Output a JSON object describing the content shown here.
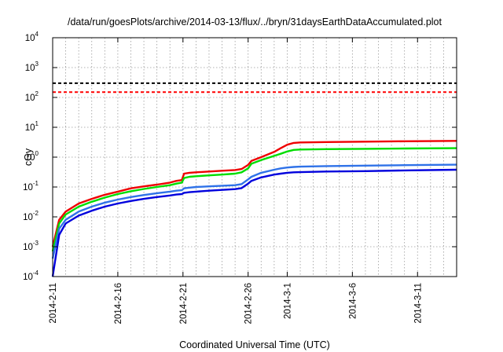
{
  "chart_data": {
    "type": "line",
    "title": "/data/run/goesPlots/archive/2014-03-13/flux/../bryn/31daysEarthDataAccumulated.plot",
    "xlabel": "Coordinated Universal Time (UTC)",
    "ylabel": "cGy",
    "y_scale": "log",
    "ylim_exponents": [
      -4,
      4
    ],
    "y_tick_labels": [
      {
        "base": "10",
        "exp": "-4",
        "value": 0.0001
      },
      {
        "base": "10",
        "exp": "-3",
        "value": 0.001
      },
      {
        "base": "10",
        "exp": "-2",
        "value": 0.01
      },
      {
        "base": "10",
        "exp": "-1",
        "value": 0.1
      },
      {
        "base": "10",
        "exp": "0",
        "value": 1
      },
      {
        "base": "10",
        "exp": "1",
        "value": 10
      },
      {
        "base": "10",
        "exp": "2",
        "value": 100
      },
      {
        "base": "10",
        "exp": "3",
        "value": 1000
      },
      {
        "base": "10",
        "exp": "4",
        "value": 10000
      }
    ],
    "xlim": [
      "2014-02-11",
      "2014-03-14"
    ],
    "x_tick_labels": [
      "2014-2-11",
      "2014-2-16",
      "2014-2-21",
      "2014-2-26",
      "2014-3-1",
      "2014-3-6",
      "2014-3-11"
    ],
    "grid": true,
    "reference_lines": [
      {
        "value": 300,
        "color": "#000000",
        "style": "dashed"
      },
      {
        "value": 150,
        "color": "#ff0000",
        "style": "dashed"
      }
    ],
    "series": [
      {
        "color": "#ee0000",
        "points": [
          [
            "2014-02-11",
            0.001
          ],
          [
            "2014-02-11T12:00",
            0.008
          ],
          [
            "2014-02-12",
            0.015
          ],
          [
            "2014-02-13",
            0.028
          ],
          [
            "2014-02-14",
            0.04
          ],
          [
            "2014-02-15",
            0.055
          ],
          [
            "2014-02-16",
            0.07
          ],
          [
            "2014-02-17",
            0.09
          ],
          [
            "2014-02-18",
            0.105
          ],
          [
            "2014-02-19",
            0.12
          ],
          [
            "2014-02-20",
            0.14
          ],
          [
            "2014-02-20T12:00",
            0.16
          ],
          [
            "2014-02-20T22:00",
            0.17
          ],
          [
            "2014-02-21T02:00",
            0.28
          ],
          [
            "2014-02-21T12:00",
            0.3
          ],
          [
            "2014-02-22",
            0.31
          ],
          [
            "2014-02-23",
            0.33
          ],
          [
            "2014-02-24",
            0.35
          ],
          [
            "2014-02-25",
            0.37
          ],
          [
            "2014-02-25T12:00",
            0.4
          ],
          [
            "2014-02-26",
            0.55
          ],
          [
            "2014-02-26T06:00",
            0.75
          ],
          [
            "2014-02-27",
            1.0
          ],
          [
            "2014-02-28",
            1.5
          ],
          [
            "2014-02-28T12:00",
            2.0
          ],
          [
            "2014-03-01",
            2.6
          ],
          [
            "2014-03-01T12:00",
            3.0
          ],
          [
            "2014-03-02",
            3.1
          ],
          [
            "2014-03-04",
            3.2
          ],
          [
            "2014-03-07",
            3.3
          ],
          [
            "2014-03-10",
            3.4
          ],
          [
            "2014-03-14",
            3.5
          ]
        ]
      },
      {
        "color": "#00dd00",
        "points": [
          [
            "2014-02-11",
            0.0007
          ],
          [
            "2014-02-11T12:00",
            0.006
          ],
          [
            "2014-02-12",
            0.012
          ],
          [
            "2014-02-13",
            0.022
          ],
          [
            "2014-02-14",
            0.032
          ],
          [
            "2014-02-15",
            0.044
          ],
          [
            "2014-02-16",
            0.058
          ],
          [
            "2014-02-17",
            0.072
          ],
          [
            "2014-02-18",
            0.086
          ],
          [
            "2014-02-19",
            0.1
          ],
          [
            "2014-02-20",
            0.115
          ],
          [
            "2014-02-20T12:00",
            0.13
          ],
          [
            "2014-02-20T22:00",
            0.14
          ],
          [
            "2014-02-21T02:00",
            0.2
          ],
          [
            "2014-02-21T12:00",
            0.22
          ],
          [
            "2014-02-22",
            0.23
          ],
          [
            "2014-02-23",
            0.245
          ],
          [
            "2014-02-24",
            0.26
          ],
          [
            "2014-02-25",
            0.28
          ],
          [
            "2014-02-25T12:00",
            0.31
          ],
          [
            "2014-02-26",
            0.42
          ],
          [
            "2014-02-26T06:00",
            0.6
          ],
          [
            "2014-02-27",
            0.8
          ],
          [
            "2014-02-28",
            1.1
          ],
          [
            "2014-02-28T12:00",
            1.3
          ],
          [
            "2014-03-01",
            1.55
          ],
          [
            "2014-03-01T12:00",
            1.75
          ],
          [
            "2014-03-02",
            1.8
          ],
          [
            "2014-03-04",
            1.85
          ],
          [
            "2014-03-07",
            1.9
          ],
          [
            "2014-03-10",
            1.95
          ],
          [
            "2014-03-14",
            2.0
          ]
        ]
      },
      {
        "color": "#2f72e8",
        "points": [
          [
            "2014-02-11",
            0.0004
          ],
          [
            "2014-02-11T12:00",
            0.004
          ],
          [
            "2014-02-12",
            0.008
          ],
          [
            "2014-02-13",
            0.015
          ],
          [
            "2014-02-14",
            0.022
          ],
          [
            "2014-02-15",
            0.03
          ],
          [
            "2014-02-16",
            0.038
          ],
          [
            "2014-02-17",
            0.046
          ],
          [
            "2014-02-18",
            0.054
          ],
          [
            "2014-02-19",
            0.062
          ],
          [
            "2014-02-20",
            0.07
          ],
          [
            "2014-02-20T12:00",
            0.075
          ],
          [
            "2014-02-20T22:00",
            0.078
          ],
          [
            "2014-02-21T02:00",
            0.09
          ],
          [
            "2014-02-21T12:00",
            0.095
          ],
          [
            "2014-02-22",
            0.1
          ],
          [
            "2014-02-23",
            0.105
          ],
          [
            "2014-02-24",
            0.11
          ],
          [
            "2014-02-25",
            0.115
          ],
          [
            "2014-02-25T12:00",
            0.125
          ],
          [
            "2014-02-26",
            0.18
          ],
          [
            "2014-02-26T06:00",
            0.22
          ],
          [
            "2014-02-27",
            0.3
          ],
          [
            "2014-02-28",
            0.38
          ],
          [
            "2014-02-28T12:00",
            0.42
          ],
          [
            "2014-03-01",
            0.45
          ],
          [
            "2014-03-01T12:00",
            0.47
          ],
          [
            "2014-03-02",
            0.48
          ],
          [
            "2014-03-04",
            0.5
          ],
          [
            "2014-03-07",
            0.52
          ],
          [
            "2014-03-10",
            0.54
          ],
          [
            "2014-03-14",
            0.56
          ]
        ]
      },
      {
        "color": "#0000dd",
        "points": [
          [
            "2014-02-11",
            0.0001
          ],
          [
            "2014-02-11T12:00",
            0.0025
          ],
          [
            "2014-02-12",
            0.006
          ],
          [
            "2014-02-13",
            0.011
          ],
          [
            "2014-02-14",
            0.016
          ],
          [
            "2014-02-15",
            0.022
          ],
          [
            "2014-02-16",
            0.028
          ],
          [
            "2014-02-17",
            0.034
          ],
          [
            "2014-02-18",
            0.04
          ],
          [
            "2014-02-19",
            0.046
          ],
          [
            "2014-02-20",
            0.052
          ],
          [
            "2014-02-20T12:00",
            0.056
          ],
          [
            "2014-02-20T22:00",
            0.058
          ],
          [
            "2014-02-21T02:00",
            0.064
          ],
          [
            "2014-02-21T12:00",
            0.067
          ],
          [
            "2014-02-22",
            0.07
          ],
          [
            "2014-02-23",
            0.075
          ],
          [
            "2014-02-24",
            0.08
          ],
          [
            "2014-02-25",
            0.085
          ],
          [
            "2014-02-25T12:00",
            0.092
          ],
          [
            "2014-02-26",
            0.13
          ],
          [
            "2014-02-26T06:00",
            0.16
          ],
          [
            "2014-02-27",
            0.21
          ],
          [
            "2014-02-28",
            0.26
          ],
          [
            "2014-02-28T12:00",
            0.28
          ],
          [
            "2014-03-01",
            0.3
          ],
          [
            "2014-03-01T12:00",
            0.31
          ],
          [
            "2014-03-02",
            0.315
          ],
          [
            "2014-03-04",
            0.33
          ],
          [
            "2014-03-07",
            0.34
          ],
          [
            "2014-03-10",
            0.36
          ],
          [
            "2014-03-14",
            0.38
          ]
        ]
      }
    ]
  }
}
